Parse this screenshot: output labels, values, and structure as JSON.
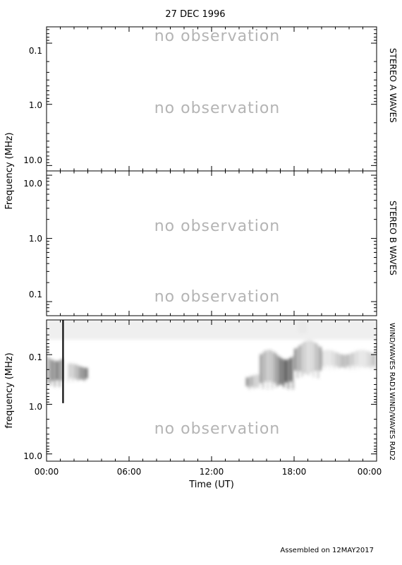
{
  "header": {
    "title": "27 DEC 1996"
  },
  "footer": {
    "assembled": "Assembled on 12MAY2017"
  },
  "chart_data": [
    {
      "type": "heatmap",
      "panel": "stereo-a",
      "right_label": "STEREO A WAVES",
      "ylabel": "",
      "y_scale": "log",
      "y_ticks": [
        {
          "value": 0.1,
          "label": "0.1"
        },
        {
          "value": 1.0,
          "label": "1.0"
        },
        {
          "value": 10.0,
          "label": "10.0"
        }
      ],
      "ylim": [
        0.05,
        14
      ],
      "y_direction": "frequency decreasing upward (0.1 at top)",
      "annotations": [
        "no observation",
        "no observation"
      ],
      "data": []
    },
    {
      "type": "heatmap",
      "panel": "stereo-b",
      "right_label": "STEREO B WAVES",
      "ylabel": "Frequency (MHz)",
      "y_scale": "log",
      "y_ticks": [
        {
          "value": 10.0,
          "label": "10.0"
        },
        {
          "value": 1.0,
          "label": "1.0"
        },
        {
          "value": 0.1,
          "label": "0.1"
        }
      ],
      "ylim": [
        0.05,
        14
      ],
      "y_direction": "frequency increasing upward (10.0 at top)",
      "annotations": [
        "no observation",
        "no observation"
      ],
      "data": []
    },
    {
      "type": "heatmap",
      "panel": "wind-waves",
      "right_label_top": "WIND/WAVES RAD1",
      "right_label_bottom": "WIND/WAVES RAD2",
      "ylabel": "frequency (MHz)",
      "xlabel": "Time (UT)",
      "x_ticks": [
        "00:00",
        "06:00",
        "12:00",
        "18:00",
        "00:00"
      ],
      "x_range_hours": [
        0,
        24
      ],
      "y_scale": "log",
      "y_ticks": [
        {
          "value": 0.1,
          "label": "0.1"
        },
        {
          "value": 1.0,
          "label": "1.0"
        },
        {
          "value": 10.0,
          "label": "10.0"
        }
      ],
      "ylim": [
        0.02,
        14
      ],
      "annotations": [
        "no observation"
      ],
      "rad2_status": "no observation",
      "features": [
        {
          "kind": "type-III burst line",
          "time_hours": 1.2,
          "freq_mhz": [
            0.02,
            0.95
          ],
          "intensity": 1.0
        },
        {
          "kind": "emission",
          "time_hours": [
            0.0,
            1.2
          ],
          "freq_mhz": [
            0.09,
            0.45
          ],
          "intensity": 0.7
        },
        {
          "kind": "emission",
          "time_hours": [
            1.5,
            3.0
          ],
          "freq_mhz": [
            0.15,
            0.35
          ],
          "intensity": 0.75
        },
        {
          "kind": "emission",
          "time_hours": [
            14.5,
            15.5
          ],
          "freq_mhz": [
            0.25,
            0.5
          ],
          "intensity": 0.65
        },
        {
          "kind": "emission",
          "time_hours": [
            15.5,
            18.0
          ],
          "freq_mhz": [
            0.08,
            0.5
          ],
          "intensity": 0.9
        },
        {
          "kind": "emission",
          "time_hours": [
            18.0,
            20.0
          ],
          "freq_mhz": [
            0.05,
            0.3
          ],
          "intensity": 0.6
        },
        {
          "kind": "emission",
          "time_hours": [
            18.3,
            18.9
          ],
          "freq_mhz": [
            0.02,
            0.04
          ],
          "intensity": 0.75
        },
        {
          "kind": "emission",
          "time_hours": [
            20.0,
            24.0
          ],
          "freq_mhz": [
            0.08,
            0.2
          ],
          "intensity": 0.4
        },
        {
          "kind": "background",
          "time_hours": [
            0.0,
            24.0
          ],
          "freq_mhz": [
            0.02,
            0.05
          ],
          "intensity": 0.08
        }
      ]
    }
  ]
}
